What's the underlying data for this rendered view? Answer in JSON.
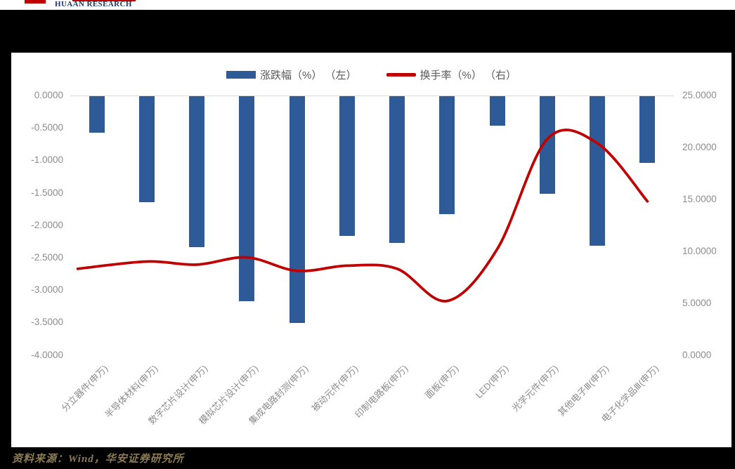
{
  "header": {
    "brand": "HUAAN RESEARCH"
  },
  "legend": {
    "bar_label": "涨跌幅（%） （左）",
    "line_label": "换手率（%） （右）"
  },
  "source_note": "资料来源：Wind，华安证券研究所",
  "colors": {
    "bar": "#2E5B98",
    "line": "#C00000",
    "axis_line": "#D9D9D9",
    "tick_text": "#8C8C8C",
    "legend_text": "#595959",
    "source_text": "#8D7C52",
    "brand_text": "#1F3864",
    "logo_red": "#C00000",
    "panel_bg": "#FFFFFF",
    "frame_bg": "#000000"
  },
  "chart_data": {
    "type": "bar",
    "subtype": "combo bar + smooth line, dual axis",
    "categories": [
      "分立器件(申万)",
      "半导体材料(申万)",
      "数字芯片设计(申万)",
      "模拟芯片设计(申万)",
      "集成电路封测(申万)",
      "被动元件(申万)",
      "印制电路板(申万)",
      "面板(申万)",
      "LED(申万)",
      "光学元件(申万)",
      "其他电子Ⅲ(申万)",
      "电子化学品Ⅲ(申万)"
    ],
    "series": [
      {
        "name": "涨跌幅（%） （左）",
        "type": "bar",
        "axis": "left",
        "color": "#2E5B98",
        "values": [
          -0.56,
          -1.63,
          -2.33,
          -3.16,
          -3.5,
          -2.15,
          -2.26,
          -1.82,
          -0.45,
          -1.5,
          -2.31,
          -1.03
        ]
      },
      {
        "name": "换手率（%） （右）",
        "type": "line",
        "axis": "right",
        "color": "#C00000",
        "values": [
          8.3,
          9.0,
          8.7,
          9.4,
          8.1,
          8.6,
          8.3,
          5.2,
          10.2,
          20.8,
          20.4,
          14.8
        ]
      }
    ],
    "left_axis": {
      "min": -4,
      "max": 0,
      "ticks": [
        "0.0000",
        "-0.5000",
        "-1.0000",
        "-1.5000",
        "-2.0000",
        "-2.5000",
        "-3.0000",
        "-3.5000",
        "-4.0000"
      ]
    },
    "right_axis": {
      "min": 0,
      "max": 25,
      "ticks": [
        "25.0000",
        "20.0000",
        "15.0000",
        "10.0000",
        "5.0000",
        "0.0000"
      ]
    },
    "title": "",
    "xlabel": "",
    "ylabel": "",
    "grid": "off (single zero/top axis line only)",
    "legend_position": "top-center",
    "x_tick_rotation": 45
  }
}
